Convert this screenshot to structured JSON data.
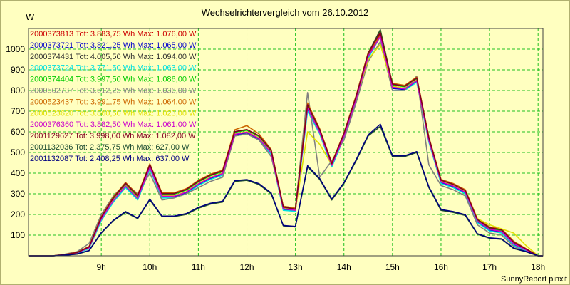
{
  "chart_data": {
    "type": "line",
    "title": "Wechselrichtervergleich vom 26.10.2012",
    "ylabel": "W",
    "credit": "SunnyReport pinxit",
    "ylim": [
      0,
      1100
    ],
    "yticks": [
      100,
      200,
      300,
      400,
      500,
      600,
      700,
      800,
      900,
      1000
    ],
    "xlim": [
      7.5,
      18.1
    ],
    "xticks": [
      9,
      10,
      11,
      12,
      13,
      14,
      15,
      16,
      17,
      18
    ],
    "xticklabels": [
      "9h",
      "10h",
      "11h",
      "12h",
      "13h",
      "14h",
      "15h",
      "16h",
      "17h",
      "18h"
    ],
    "grid": true,
    "legend_position": "top-left",
    "x": [
      7.5,
      8.0,
      8.25,
      8.5,
      8.75,
      9.0,
      9.25,
      9.5,
      9.75,
      10.0,
      10.25,
      10.5,
      10.75,
      11.0,
      11.25,
      11.5,
      11.75,
      12.0,
      12.25,
      12.5,
      12.75,
      13.0,
      13.25,
      13.5,
      13.75,
      14.0,
      14.25,
      14.5,
      14.75,
      15.0,
      15.25,
      15.5,
      15.75,
      16.0,
      16.25,
      16.5,
      16.75,
      17.0,
      17.25,
      17.5,
      17.75,
      18.0,
      18.1
    ],
    "series": [
      {
        "name": "2000373813",
        "legend": "2000373813 Tot: 3.883,75 Wh Max: 1.076,00 W",
        "color": "#cc0000",
        "values": [
          0,
          0,
          5,
          15,
          40,
          180,
          270,
          340,
          280,
          430,
          290,
          290,
          310,
          350,
          380,
          400,
          590,
          600,
          570,
          500,
          230,
          220,
          720,
          600,
          440,
          580,
          760,
          970,
          1076,
          820,
          810,
          850,
          560,
          360,
          340,
          310,
          170,
          130,
          120,
          60,
          30,
          0,
          0
        ]
      },
      {
        "name": "2000373721",
        "legend": "2000373721 Tot: 3.821,25 Wh Max: 1.065,00 W",
        "color": "#0000cc",
        "values": [
          0,
          0,
          5,
          14,
          38,
          175,
          265,
          335,
          275,
          425,
          285,
          285,
          305,
          345,
          375,
          395,
          585,
          595,
          565,
          495,
          225,
          218,
          710,
          595,
          435,
          575,
          755,
          960,
          1065,
          810,
          805,
          845,
          555,
          355,
          335,
          305,
          165,
          125,
          115,
          55,
          28,
          0,
          0
        ]
      },
      {
        "name": "2000374431",
        "legend": "2000374431 Tot: 4.005,50 Wh Max: 1.094,00 W",
        "color": "#303030",
        "values": [
          0,
          0,
          6,
          16,
          42,
          185,
          280,
          350,
          290,
          440,
          300,
          300,
          320,
          360,
          390,
          410,
          600,
          610,
          580,
          510,
          235,
          225,
          730,
          610,
          445,
          590,
          770,
          980,
          1094,
          830,
          820,
          860,
          570,
          365,
          345,
          315,
          175,
          135,
          125,
          65,
          32,
          0,
          0
        ]
      },
      {
        "name": "2000373724",
        "legend": "2000373724 Tot: 3.771,50 Wh Max: 1.063,00 W",
        "color": "#00e0e0",
        "values": [
          0,
          0,
          4,
          12,
          35,
          170,
          260,
          330,
          270,
          420,
          280,
          280,
          300,
          340,
          370,
          390,
          580,
          590,
          560,
          490,
          220,
          215,
          700,
          590,
          430,
          570,
          750,
          955,
          1063,
          800,
          800,
          840,
          550,
          350,
          330,
          300,
          160,
          120,
          110,
          50,
          25,
          0,
          0
        ]
      },
      {
        "name": "2000374404",
        "legend": "2000374404 Tot: 3.997,50 Wh Max: 1.086,00 W",
        "color": "#00cc00",
        "values": [
          0,
          0,
          6,
          15,
          41,
          183,
          278,
          348,
          288,
          438,
          298,
          298,
          318,
          358,
          388,
          408,
          598,
          608,
          578,
          508,
          233,
          223,
          728,
          608,
          443,
          588,
          768,
          978,
          1086,
          828,
          818,
          858,
          568,
          363,
          343,
          313,
          173,
          133,
          123,
          63,
          31,
          0,
          0
        ]
      },
      {
        "name": "2000502737",
        "legend": "2000502737 Tot: 3.612,25 Wh Max: 1.036,00 W",
        "color": "#808080",
        "values": [
          0,
          0,
          8,
          20,
          60,
          200,
          290,
          350,
          300,
          400,
          270,
          280,
          300,
          330,
          360,
          380,
          580,
          590,
          560,
          480,
          240,
          230,
          790,
          380,
          460,
          560,
          740,
          940,
          1036,
          800,
          800,
          870,
          440,
          340,
          320,
          290,
          150,
          110,
          100,
          45,
          20,
          0,
          0
        ]
      },
      {
        "name": "2000523437",
        "legend": "2000523437 Tot: 3.991,75 Wh Max: 1.064,00 W",
        "color": "#cc6600",
        "values": [
          0,
          0,
          7,
          17,
          45,
          190,
          285,
          355,
          295,
          445,
          305,
          305,
          325,
          365,
          395,
          415,
          610,
          630,
          590,
          515,
          240,
          230,
          740,
          615,
          450,
          595,
          775,
          985,
          1064,
          835,
          825,
          865,
          575,
          370,
          350,
          320,
          180,
          140,
          130,
          70,
          35,
          0,
          0
        ]
      },
      {
        "name": "2000523620",
        "legend": "2000523620 Tot: 3.860,50 Wh Max: 1.023,00 W",
        "color": "#e0e000",
        "values": [
          0,
          0,
          5,
          15,
          40,
          180,
          270,
          340,
          280,
          430,
          290,
          290,
          310,
          350,
          380,
          400,
          590,
          600,
          570,
          500,
          230,
          220,
          600,
          540,
          440,
          580,
          760,
          950,
          1023,
          820,
          810,
          850,
          560,
          360,
          340,
          310,
          180,
          150,
          130,
          110,
          50,
          0,
          0
        ]
      },
      {
        "name": "2000376360",
        "legend": "2000376360 Tot: 3.882,50 Wh Max: 1.061,00 W",
        "color": "#cc00cc",
        "values": [
          0,
          0,
          5,
          15,
          39,
          178,
          268,
          338,
          278,
          428,
          288,
          288,
          308,
          348,
          378,
          398,
          588,
          598,
          568,
          498,
          228,
          220,
          715,
          598,
          438,
          578,
          758,
          965,
          1061,
          815,
          808,
          848,
          558,
          358,
          338,
          308,
          168,
          128,
          118,
          58,
          29,
          0,
          0
        ]
      },
      {
        "name": "2001129627",
        "legend": "2001129627 Tot: 3.998,00 Wh Max: 1.082,00 W",
        "color": "#800020",
        "values": [
          0,
          0,
          6,
          16,
          43,
          186,
          281,
          351,
          291,
          441,
          301,
          301,
          321,
          361,
          391,
          411,
          601,
          611,
          581,
          511,
          236,
          226,
          731,
          611,
          446,
          591,
          771,
          981,
          1082,
          831,
          821,
          861,
          571,
          366,
          346,
          316,
          176,
          136,
          126,
          66,
          33,
          0,
          0
        ]
      },
      {
        "name": "2001132036",
        "legend": "2001132036 Tot: 2.375,75 Wh Max: 627,00 W",
        "color": "#1a4a30",
        "values": [
          0,
          0,
          3,
          8,
          25,
          110,
          170,
          210,
          180,
          270,
          190,
          190,
          200,
          230,
          250,
          260,
          360,
          365,
          345,
          300,
          145,
          140,
          430,
          370,
          270,
          350,
          460,
          580,
          627,
          480,
          480,
          500,
          330,
          220,
          210,
          195,
          105,
          85,
          80,
          35,
          20,
          0,
          0
        ]
      },
      {
        "name": "2001132087",
        "legend": "2001132087 Tot: 2.408,25 Wh Max: 637,00 W",
        "color": "#000080",
        "values": [
          0,
          0,
          3,
          9,
          26,
          112,
          172,
          214,
          182,
          274,
          192,
          192,
          204,
          234,
          254,
          264,
          364,
          369,
          349,
          304,
          147,
          142,
          436,
          374,
          274,
          354,
          464,
          585,
          637,
          484,
          484,
          504,
          334,
          224,
          214,
          199,
          107,
          87,
          82,
          37,
          21,
          0,
          0
        ]
      }
    ]
  }
}
